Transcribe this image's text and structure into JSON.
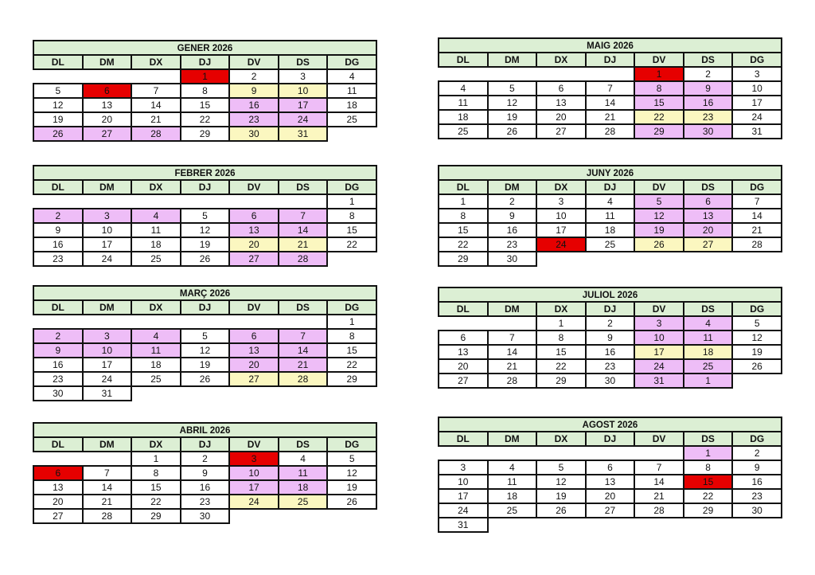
{
  "legend_colors": {
    "p": "#eebdf7",
    "y": "#fbf7c0",
    "r": "#e60000"
  },
  "calendars": [
    {
      "title": "GENER 2026",
      "headers": [
        "DL",
        "DM",
        "DX",
        "DJ",
        "DV",
        "DS",
        "DG"
      ],
      "weeks": [
        [
          {
            "t": ""
          },
          {
            "t": ""
          },
          {
            "t": ""
          },
          {
            "t": "1",
            "c": "r"
          },
          {
            "t": "2"
          },
          {
            "t": "3"
          },
          {
            "t": "4"
          }
        ],
        [
          {
            "t": "5"
          },
          {
            "t": "6",
            "c": "r"
          },
          {
            "t": "7"
          },
          {
            "t": "8"
          },
          {
            "t": "9",
            "c": "y"
          },
          {
            "t": "10",
            "c": "y"
          },
          {
            "t": "11"
          }
        ],
        [
          {
            "t": "12"
          },
          {
            "t": "13"
          },
          {
            "t": "14"
          },
          {
            "t": "15"
          },
          {
            "t": "16",
            "c": "p"
          },
          {
            "t": "17",
            "c": "p"
          },
          {
            "t": "18"
          }
        ],
        [
          {
            "t": "19"
          },
          {
            "t": "20"
          },
          {
            "t": "21"
          },
          {
            "t": "22"
          },
          {
            "t": "23",
            "c": "p"
          },
          {
            "t": "24",
            "c": "p"
          },
          {
            "t": "25"
          }
        ],
        [
          {
            "t": "26",
            "c": "p"
          },
          {
            "t": "27",
            "c": "p"
          },
          {
            "t": "28",
            "c": "p"
          },
          {
            "t": "29"
          },
          {
            "t": "30",
            "c": "y"
          },
          {
            "t": "31",
            "c": "y"
          },
          {
            "t": ""
          }
        ]
      ]
    },
    {
      "title": "FEBRER 2026",
      "headers": [
        "DL",
        "DM",
        "DX",
        "DJ",
        "DV",
        "DS",
        "DG"
      ],
      "weeks": [
        [
          {
            "t": ""
          },
          {
            "t": ""
          },
          {
            "t": ""
          },
          {
            "t": ""
          },
          {
            "t": ""
          },
          {
            "t": ""
          },
          {
            "t": "1"
          }
        ],
        [
          {
            "t": "2",
            "c": "p"
          },
          {
            "t": "3",
            "c": "p"
          },
          {
            "t": "4",
            "c": "p"
          },
          {
            "t": "5"
          },
          {
            "t": "6",
            "c": "p"
          },
          {
            "t": "7",
            "c": "p"
          },
          {
            "t": "8"
          }
        ],
        [
          {
            "t": "9"
          },
          {
            "t": "10"
          },
          {
            "t": "11"
          },
          {
            "t": "12"
          },
          {
            "t": "13",
            "c": "p"
          },
          {
            "t": "14",
            "c": "p"
          },
          {
            "t": "15"
          }
        ],
        [
          {
            "t": "16"
          },
          {
            "t": "17"
          },
          {
            "t": "18"
          },
          {
            "t": "19"
          },
          {
            "t": "20",
            "c": "y"
          },
          {
            "t": "21",
            "c": "y"
          },
          {
            "t": "22"
          }
        ],
        [
          {
            "t": "23"
          },
          {
            "t": "24"
          },
          {
            "t": "25"
          },
          {
            "t": "26"
          },
          {
            "t": "27",
            "c": "p"
          },
          {
            "t": "28",
            "c": "p"
          },
          {
            "t": ""
          }
        ]
      ]
    },
    {
      "title": "MARÇ 2026",
      "headers": [
        "DL",
        "DM",
        "DX",
        "DJ",
        "DV",
        "DS",
        "DG"
      ],
      "weeks": [
        [
          {
            "t": ""
          },
          {
            "t": ""
          },
          {
            "t": ""
          },
          {
            "t": ""
          },
          {
            "t": ""
          },
          {
            "t": ""
          },
          {
            "t": "1"
          }
        ],
        [
          {
            "t": "2",
            "c": "p"
          },
          {
            "t": "3",
            "c": "p"
          },
          {
            "t": "4",
            "c": "p"
          },
          {
            "t": "5"
          },
          {
            "t": "6",
            "c": "p"
          },
          {
            "t": "7",
            "c": "p"
          },
          {
            "t": "8"
          }
        ],
        [
          {
            "t": "9",
            "c": "p"
          },
          {
            "t": "10",
            "c": "p"
          },
          {
            "t": "11",
            "c": "p"
          },
          {
            "t": "12"
          },
          {
            "t": "13",
            "c": "p"
          },
          {
            "t": "14",
            "c": "p"
          },
          {
            "t": "15"
          }
        ],
        [
          {
            "t": "16"
          },
          {
            "t": "17"
          },
          {
            "t": "18"
          },
          {
            "t": "19"
          },
          {
            "t": "20",
            "c": "p"
          },
          {
            "t": "21",
            "c": "p"
          },
          {
            "t": "22"
          }
        ],
        [
          {
            "t": "23"
          },
          {
            "t": "24"
          },
          {
            "t": "25"
          },
          {
            "t": "26"
          },
          {
            "t": "27",
            "c": "y"
          },
          {
            "t": "28",
            "c": "y"
          },
          {
            "t": "29"
          }
        ],
        [
          {
            "t": "30"
          },
          {
            "t": "31"
          },
          {
            "t": ""
          },
          {
            "t": ""
          },
          {
            "t": ""
          },
          {
            "t": ""
          },
          {
            "t": ""
          }
        ]
      ]
    },
    {
      "title": "ABRIL 2026",
      "headers": [
        "DL",
        "DM",
        "DX",
        "DJ",
        "DV",
        "DS",
        "DG"
      ],
      "weeks": [
        [
          {
            "t": ""
          },
          {
            "t": ""
          },
          {
            "t": "1"
          },
          {
            "t": "2"
          },
          {
            "t": "3",
            "c": "r"
          },
          {
            "t": "4"
          },
          {
            "t": "5"
          }
        ],
        [
          {
            "t": "6",
            "c": "r"
          },
          {
            "t": "7"
          },
          {
            "t": "8"
          },
          {
            "t": "9"
          },
          {
            "t": "10",
            "c": "p"
          },
          {
            "t": "11",
            "c": "p"
          },
          {
            "t": "12"
          }
        ],
        [
          {
            "t": "13"
          },
          {
            "t": "14"
          },
          {
            "t": "15"
          },
          {
            "t": "16"
          },
          {
            "t": "17",
            "c": "p"
          },
          {
            "t": "18",
            "c": "p"
          },
          {
            "t": "19"
          }
        ],
        [
          {
            "t": "20"
          },
          {
            "t": "21"
          },
          {
            "t": "22"
          },
          {
            "t": "23"
          },
          {
            "t": "24",
            "c": "y"
          },
          {
            "t": "25",
            "c": "y"
          },
          {
            "t": "26"
          }
        ],
        [
          {
            "t": "27"
          },
          {
            "t": "28"
          },
          {
            "t": "29"
          },
          {
            "t": "30"
          },
          {
            "t": ""
          },
          {
            "t": ""
          },
          {
            "t": ""
          }
        ]
      ]
    },
    {
      "title": "MAIG 2026",
      "headers": [
        "DL",
        "DM",
        "DX",
        "DJ",
        "DV",
        "DS",
        "DG"
      ],
      "weeks": [
        [
          {
            "t": ""
          },
          {
            "t": ""
          },
          {
            "t": ""
          },
          {
            "t": ""
          },
          {
            "t": "1",
            "c": "r"
          },
          {
            "t": "2"
          },
          {
            "t": "3"
          }
        ],
        [
          {
            "t": "4"
          },
          {
            "t": "5"
          },
          {
            "t": "6"
          },
          {
            "t": "7"
          },
          {
            "t": "8",
            "c": "p"
          },
          {
            "t": "9",
            "c": "p"
          },
          {
            "t": "10"
          }
        ],
        [
          {
            "t": "11"
          },
          {
            "t": "12"
          },
          {
            "t": "13"
          },
          {
            "t": "14"
          },
          {
            "t": "15",
            "c": "p"
          },
          {
            "t": "16",
            "c": "p"
          },
          {
            "t": "17"
          }
        ],
        [
          {
            "t": "18"
          },
          {
            "t": "19"
          },
          {
            "t": "20"
          },
          {
            "t": "21"
          },
          {
            "t": "22",
            "c": "y"
          },
          {
            "t": "23",
            "c": "y"
          },
          {
            "t": "24"
          }
        ],
        [
          {
            "t": "25"
          },
          {
            "t": "26"
          },
          {
            "t": "27"
          },
          {
            "t": "28"
          },
          {
            "t": "29",
            "c": "p"
          },
          {
            "t": "30",
            "c": "p"
          },
          {
            "t": "31"
          }
        ]
      ]
    },
    {
      "title": "JUNY 2026",
      "headers": [
        "DL",
        "DM",
        "DX",
        "DJ",
        "DV",
        "DS",
        "DG"
      ],
      "weeks": [
        [
          {
            "t": "1"
          },
          {
            "t": "2"
          },
          {
            "t": "3"
          },
          {
            "t": "4"
          },
          {
            "t": "5",
            "c": "p"
          },
          {
            "t": "6",
            "c": "p"
          },
          {
            "t": "7"
          }
        ],
        [
          {
            "t": "8"
          },
          {
            "t": "9"
          },
          {
            "t": "10"
          },
          {
            "t": "11"
          },
          {
            "t": "12",
            "c": "p"
          },
          {
            "t": "13",
            "c": "p"
          },
          {
            "t": "14"
          }
        ],
        [
          {
            "t": "15"
          },
          {
            "t": "16"
          },
          {
            "t": "17"
          },
          {
            "t": "18"
          },
          {
            "t": "19",
            "c": "p"
          },
          {
            "t": "20",
            "c": "p"
          },
          {
            "t": "21"
          }
        ],
        [
          {
            "t": "22"
          },
          {
            "t": "23"
          },
          {
            "t": "24",
            "c": "r"
          },
          {
            "t": "25"
          },
          {
            "t": "26",
            "c": "y"
          },
          {
            "t": "27",
            "c": "y"
          },
          {
            "t": "28"
          }
        ],
        [
          {
            "t": "29"
          },
          {
            "t": "30"
          },
          {
            "t": ""
          },
          {
            "t": ""
          },
          {
            "t": ""
          },
          {
            "t": ""
          },
          {
            "t": ""
          }
        ]
      ]
    },
    {
      "title": "JULIOL 2026",
      "headers": [
        "DL",
        "DM",
        "DX",
        "DJ",
        "DV",
        "DS",
        "DG"
      ],
      "weeks": [
        [
          {
            "t": ""
          },
          {
            "t": ""
          },
          {
            "t": "1"
          },
          {
            "t": "2"
          },
          {
            "t": "3",
            "c": "p"
          },
          {
            "t": "4",
            "c": "p"
          },
          {
            "t": "5"
          }
        ],
        [
          {
            "t": "6"
          },
          {
            "t": "7"
          },
          {
            "t": "8"
          },
          {
            "t": "9"
          },
          {
            "t": "10",
            "c": "p"
          },
          {
            "t": "11",
            "c": "p"
          },
          {
            "t": "12"
          }
        ],
        [
          {
            "t": "13"
          },
          {
            "t": "14"
          },
          {
            "t": "15"
          },
          {
            "t": "16"
          },
          {
            "t": "17",
            "c": "y"
          },
          {
            "t": "18",
            "c": "y"
          },
          {
            "t": "19"
          }
        ],
        [
          {
            "t": "20"
          },
          {
            "t": "21"
          },
          {
            "t": "22"
          },
          {
            "t": "23"
          },
          {
            "t": "24",
            "c": "p"
          },
          {
            "t": "25",
            "c": "p"
          },
          {
            "t": "26"
          }
        ],
        [
          {
            "t": "27"
          },
          {
            "t": "28"
          },
          {
            "t": "29"
          },
          {
            "t": "30"
          },
          {
            "t": "31",
            "c": "p"
          },
          {
            "t": "1",
            "c": "p"
          },
          {
            "t": ""
          }
        ]
      ]
    },
    {
      "title": "AGOST 2026",
      "headers": [
        "DL",
        "DM",
        "DX",
        "DJ",
        "DV",
        "DS",
        "DG"
      ],
      "weeks": [
        [
          {
            "t": ""
          },
          {
            "t": ""
          },
          {
            "t": ""
          },
          {
            "t": ""
          },
          {
            "t": ""
          },
          {
            "t": "1",
            "c": "p"
          },
          {
            "t": "2"
          }
        ],
        [
          {
            "t": "3"
          },
          {
            "t": "4"
          },
          {
            "t": "5"
          },
          {
            "t": "6"
          },
          {
            "t": "7"
          },
          {
            "t": "8"
          },
          {
            "t": "9"
          }
        ],
        [
          {
            "t": "10"
          },
          {
            "t": "11"
          },
          {
            "t": "12"
          },
          {
            "t": "13"
          },
          {
            "t": "14"
          },
          {
            "t": "15",
            "c": "r"
          },
          {
            "t": "16"
          }
        ],
        [
          {
            "t": "17"
          },
          {
            "t": "18"
          },
          {
            "t": "19"
          },
          {
            "t": "20"
          },
          {
            "t": "21"
          },
          {
            "t": "22"
          },
          {
            "t": "23"
          }
        ],
        [
          {
            "t": "24"
          },
          {
            "t": "25"
          },
          {
            "t": "26"
          },
          {
            "t": "27"
          },
          {
            "t": "28"
          },
          {
            "t": "29"
          },
          {
            "t": "30"
          }
        ],
        [
          {
            "t": "31"
          },
          {
            "t": ""
          },
          {
            "t": ""
          },
          {
            "t": ""
          },
          {
            "t": ""
          },
          {
            "t": ""
          },
          {
            "t": ""
          }
        ]
      ]
    }
  ]
}
